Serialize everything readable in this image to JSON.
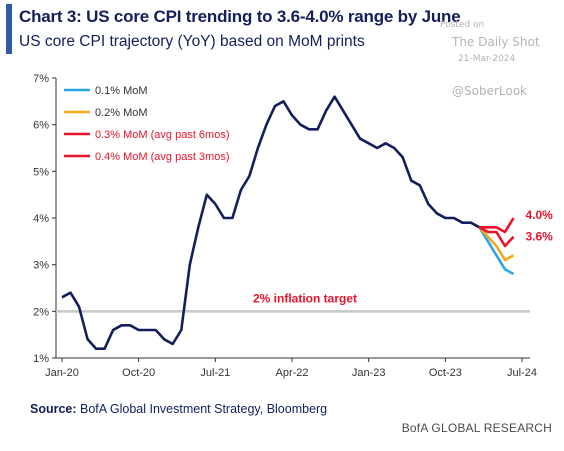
{
  "header": {
    "title": "Chart 3: US core CPI trending to 3.6-4.0% range by June",
    "subtitle": "US core CPI trajectory (YoY) based on MoM prints"
  },
  "watermark": {
    "posted_on": "Posted on",
    "name": "The Daily Shot",
    "date": "21-Mar-2024",
    "handle": "@SoberLook"
  },
  "source": {
    "label": "Source:",
    "text": " BofA Global Investment Strategy, Bloomberg"
  },
  "footer": {
    "brand": "BofA GLOBAL RESEARCH"
  },
  "chart_data": {
    "type": "line",
    "title": "Chart 3: US core CPI trending to 3.6-4.0% range by June",
    "subtitle": "US core CPI trajectory (YoY) based on MoM prints",
    "xlabel": "",
    "ylabel": "",
    "x_ticks": [
      "Jan-20",
      "Oct-20",
      "Jul-21",
      "Apr-22",
      "Jan-23",
      "Oct-23",
      "Jul-24"
    ],
    "y_ticks": [
      "1%",
      "2%",
      "3%",
      "4%",
      "5%",
      "6%",
      "7%"
    ],
    "ylim": [
      1,
      7
    ],
    "xlim": [
      "2020-01",
      "2024-07"
    ],
    "grid": false,
    "legend_position": "top-left",
    "colors": {
      "history": "#141e5a",
      "mom_0_1": "#29a9e1",
      "mom_0_2": "#f6a71a",
      "mom_0_3": "#e8142a",
      "mom_0_4": "#e8142a",
      "target": "#c8c8c8",
      "annotation": "#e8142a"
    },
    "history": {
      "name": "US core CPI YoY",
      "x": [
        "2020-01",
        "2020-02",
        "2020-03",
        "2020-04",
        "2020-05",
        "2020-06",
        "2020-07",
        "2020-08",
        "2020-09",
        "2020-10",
        "2020-11",
        "2020-12",
        "2021-01",
        "2021-02",
        "2021-03",
        "2021-04",
        "2021-05",
        "2021-06",
        "2021-07",
        "2021-08",
        "2021-09",
        "2021-10",
        "2021-11",
        "2021-12",
        "2022-01",
        "2022-02",
        "2022-03",
        "2022-04",
        "2022-05",
        "2022-06",
        "2022-07",
        "2022-08",
        "2022-09",
        "2022-10",
        "2022-11",
        "2022-12",
        "2023-01",
        "2023-02",
        "2023-03",
        "2023-04",
        "2023-05",
        "2023-06",
        "2023-07",
        "2023-08",
        "2023-09",
        "2023-10",
        "2023-11",
        "2023-12",
        "2024-01",
        "2024-02"
      ],
      "values": [
        2.3,
        2.4,
        2.1,
        1.4,
        1.2,
        1.2,
        1.6,
        1.7,
        1.7,
        1.6,
        1.6,
        1.6,
        1.4,
        1.3,
        1.6,
        3.0,
        3.8,
        4.5,
        4.3,
        4.0,
        4.0,
        4.6,
        4.9,
        5.5,
        6.0,
        6.4,
        6.5,
        6.2,
        6.0,
        5.9,
        5.9,
        6.3,
        6.6,
        6.3,
        6.0,
        5.7,
        5.6,
        5.5,
        5.6,
        5.5,
        5.3,
        4.8,
        4.7,
        4.3,
        4.1,
        4.0,
        4.0,
        3.9,
        3.9,
        3.8
      ]
    },
    "series": [
      {
        "name": "0.1% MoM",
        "x": [
          "2024-02",
          "2024-03",
          "2024-04",
          "2024-05",
          "2024-06"
        ],
        "values": [
          3.8,
          3.5,
          3.2,
          2.9,
          2.8
        ]
      },
      {
        "name": "0.2% MoM",
        "x": [
          "2024-02",
          "2024-03",
          "2024-04",
          "2024-05",
          "2024-06"
        ],
        "values": [
          3.8,
          3.6,
          3.4,
          3.1,
          3.2
        ]
      },
      {
        "name": "0.3% MoM (avg past 6mos)",
        "x": [
          "2024-02",
          "2024-03",
          "2024-04",
          "2024-05",
          "2024-06"
        ],
        "values": [
          3.8,
          3.7,
          3.7,
          3.4,
          3.6
        ]
      },
      {
        "name": "0.4% MoM (avg past 3mos)",
        "x": [
          "2024-02",
          "2024-03",
          "2024-04",
          "2024-05",
          "2024-06"
        ],
        "values": [
          3.8,
          3.8,
          3.8,
          3.7,
          4.0
        ]
      }
    ],
    "target": {
      "label": "2% inflation target",
      "value": 2
    },
    "annotations": [
      "4.0%",
      "3.6%"
    ]
  }
}
